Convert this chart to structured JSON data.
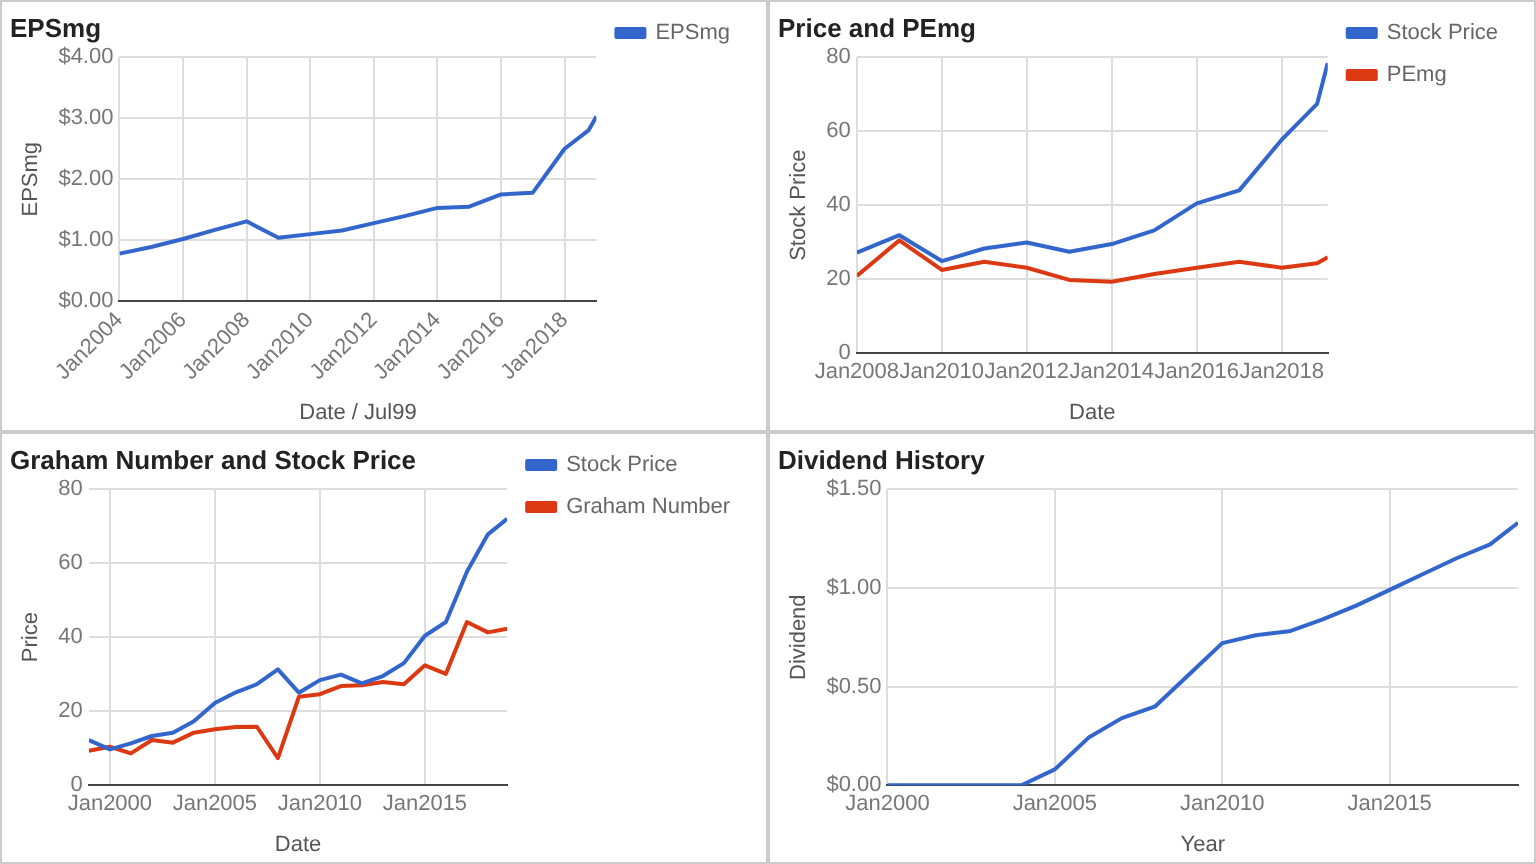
{
  "chart_data": [
    {
      "type": "line",
      "title": "EPSmg",
      "xlabel": "Date / Jul99",
      "ylabel": "EPSmg",
      "legend": "top right",
      "grid": true,
      "x": [
        "2004-01",
        "2005-01",
        "2006-01",
        "2007-01",
        "2008-01",
        "2009-01",
        "2010-01",
        "2011-01",
        "2012-01",
        "2013-01",
        "2014-01",
        "2015-01",
        "2016-01",
        "2017-01",
        "2018-01",
        "2018-10",
        "2019-01"
      ],
      "series": [
        {
          "name": "EPSmg",
          "color": "#3366cc",
          "values": [
            0.78,
            0.89,
            1.02,
            1.17,
            1.31,
            1.04,
            1.1,
            1.16,
            1.28,
            1.4,
            1.53,
            1.55,
            1.75,
            1.78,
            2.5,
            2.8,
            3.03
          ]
        }
      ],
      "xlim": [
        "2004-01",
        "2019-01"
      ],
      "xticks": [
        {
          "value": "2004-01",
          "label": "Jan2004"
        },
        {
          "value": "2006-01",
          "label": "Jan2006"
        },
        {
          "value": "2008-01",
          "label": "Jan2008"
        },
        {
          "value": "2010-01",
          "label": "Jan2010"
        },
        {
          "value": "2012-01",
          "label": "Jan2012"
        },
        {
          "value": "2014-01",
          "label": "Jan2014"
        },
        {
          "value": "2016-01",
          "label": "Jan2016"
        },
        {
          "value": "2018-01",
          "label": "Jan2018"
        }
      ],
      "ylim": [
        0,
        4
      ],
      "yticks": [
        {
          "value": 0,
          "label": "$0.00"
        },
        {
          "value": 1,
          "label": "$1.00"
        },
        {
          "value": 2,
          "label": "$2.00"
        },
        {
          "value": 3,
          "label": "$3.00"
        },
        {
          "value": 4,
          "label": "$4.00"
        }
      ]
    },
    {
      "type": "line",
      "title": "Price and PEmg",
      "xlabel": "Date",
      "ylabel": "Stock Price",
      "legend": "top right",
      "grid": true,
      "x": [
        "2008-01",
        "2009-01",
        "2010-01",
        "2011-01",
        "2012-01",
        "2013-01",
        "2014-01",
        "2015-01",
        "2016-01",
        "2017-01",
        "2018-01",
        "2018-11",
        "2019-02"
      ],
      "series": [
        {
          "name": "Stock Price",
          "color": "#3366cc",
          "values": [
            27.2,
            31.9,
            24.9,
            28.3,
            29.9,
            27.4,
            29.5,
            33.2,
            40.5,
            44,
            57.7,
            67.4,
            78.4
          ]
        },
        {
          "name": "PEmg",
          "color": "#dc3912",
          "values": [
            20.9,
            30.5,
            22.5,
            24.7,
            23.1,
            19.8,
            19.3,
            21.4,
            23.1,
            24.7,
            23.1,
            24.3,
            25.9
          ]
        }
      ],
      "xlim": [
        "2008-01",
        "2019-02"
      ],
      "xticks": [
        {
          "value": "2008-01",
          "label": "Jan2008"
        },
        {
          "value": "2010-01",
          "label": "Jan2010"
        },
        {
          "value": "2012-01",
          "label": "Jan2012"
        },
        {
          "value": "2014-01",
          "label": "Jan2014"
        },
        {
          "value": "2016-01",
          "label": "Jan2016"
        },
        {
          "value": "2018-01",
          "label": "Jan2018"
        }
      ],
      "ylim": [
        0,
        80
      ],
      "yticks": [
        0,
        20,
        40,
        60,
        80
      ]
    },
    {
      "type": "line",
      "title": "Graham Number and Stock Price",
      "xlabel": "Date",
      "ylabel": "Price",
      "legend": "top right",
      "grid": true,
      "x": [
        "1999-01",
        "2000-01",
        "2001-01",
        "2002-01",
        "2003-01",
        "2004-01",
        "2005-01",
        "2006-01",
        "2007-01",
        "2008-01",
        "2009-01",
        "2010-01",
        "2011-01",
        "2012-01",
        "2013-01",
        "2014-01",
        "2015-01",
        "2016-01",
        "2017-01",
        "2018-01",
        "2018-12"
      ],
      "series": [
        {
          "name": "Stock Price",
          "color": "#3366cc",
          "values": [
            12.2,
            9.7,
            11.3,
            13.3,
            14.2,
            17.3,
            22.2,
            25.1,
            27.3,
            31.3,
            25,
            28.4,
            29.9,
            27.5,
            29.5,
            33,
            40.4,
            44.1,
            57.7,
            67.8,
            72
          ]
        },
        {
          "name": "Graham Number",
          "color": "#dc3912",
          "values": [
            9.3,
            10.4,
            8.6,
            12.2,
            11.5,
            14.2,
            15.1,
            15.7,
            15.8,
            7.3,
            23.9,
            24.6,
            26.8,
            27,
            27.9,
            27.3,
            32.4,
            30.1,
            44.1,
            41.3,
            42.3
          ]
        }
      ],
      "xlim": [
        "1999-01",
        "2018-12"
      ],
      "xticks": [
        {
          "value": "2000-01",
          "label": "Jan2000"
        },
        {
          "value": "2005-01",
          "label": "Jan2005"
        },
        {
          "value": "2010-01",
          "label": "Jan2010"
        },
        {
          "value": "2015-01",
          "label": "Jan2015"
        }
      ],
      "ylim": [
        0,
        80
      ],
      "yticks": [
        0,
        20,
        40,
        60,
        80
      ]
    },
    {
      "type": "line",
      "title": "Dividend History",
      "xlabel": "Year",
      "ylabel": "Dividend",
      "grid": true,
      "x": [
        "2000-01",
        "2001-01",
        "2002-01",
        "2003-01",
        "2004-01",
        "2005-01",
        "2006-01",
        "2007-01",
        "2008-01",
        "2009-01",
        "2010-01",
        "2011-01",
        "2012-01",
        "2013-01",
        "2014-01",
        "2015-01",
        "2016-01",
        "2017-01",
        "2018-01",
        "2018-11"
      ],
      "series": [
        {
          "color": "#3366cc",
          "values": [
            0,
            0,
            0,
            0,
            0,
            0.08,
            0.24,
            0.34,
            0.4,
            0.56,
            0.72,
            0.76,
            0.78,
            0.84,
            0.91,
            0.99,
            1.07,
            1.15,
            1.22,
            1.33
          ]
        }
      ],
      "xlim": [
        "2000-01",
        "2018-11"
      ],
      "xticks": [
        {
          "value": "2000-01",
          "label": "Jan2000"
        },
        {
          "value": "2005-01",
          "label": "Jan2005"
        },
        {
          "value": "2010-01",
          "label": "Jan2010"
        },
        {
          "value": "2015-01",
          "label": "Jan2015"
        }
      ],
      "ylim": [
        0,
        1.5
      ],
      "yticks": [
        {
          "value": 0,
          "label": "$0.00"
        },
        {
          "value": 0.5,
          "label": "$0.50"
        },
        {
          "value": 1,
          "label": "$1.00"
        },
        {
          "value": 1.5,
          "label": "$1.50"
        }
      ]
    }
  ]
}
